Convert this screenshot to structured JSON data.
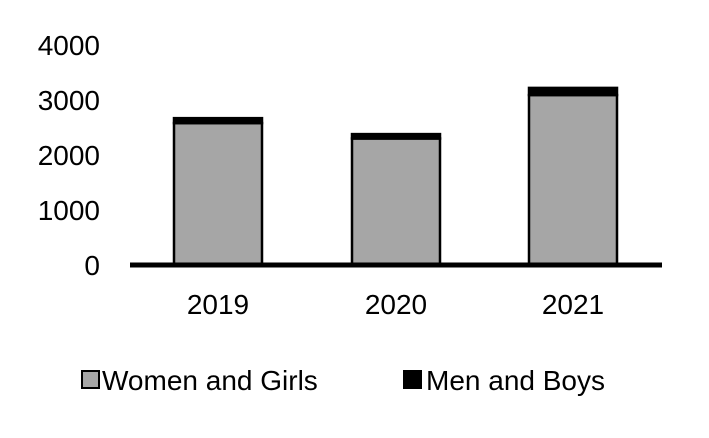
{
  "chart_data": {
    "type": "bar",
    "stacked": true,
    "categories": [
      "2019",
      "2020",
      "2021"
    ],
    "series": [
      {
        "name": "Women and Girls",
        "values": [
          2580,
          2300,
          3090
        ],
        "color": "#a6a6a6"
      },
      {
        "name": "Men and Boys",
        "values": [
          90,
          80,
          130
        ],
        "color": "#000000"
      }
    ],
    "ylim": [
      0,
      4000
    ],
    "yticks": [
      "0",
      "1000",
      "2000",
      "3000",
      "4000"
    ],
    "ytick_values": [
      0,
      1000,
      2000,
      3000,
      4000
    ],
    "grid": false,
    "legend": "bottom"
  }
}
